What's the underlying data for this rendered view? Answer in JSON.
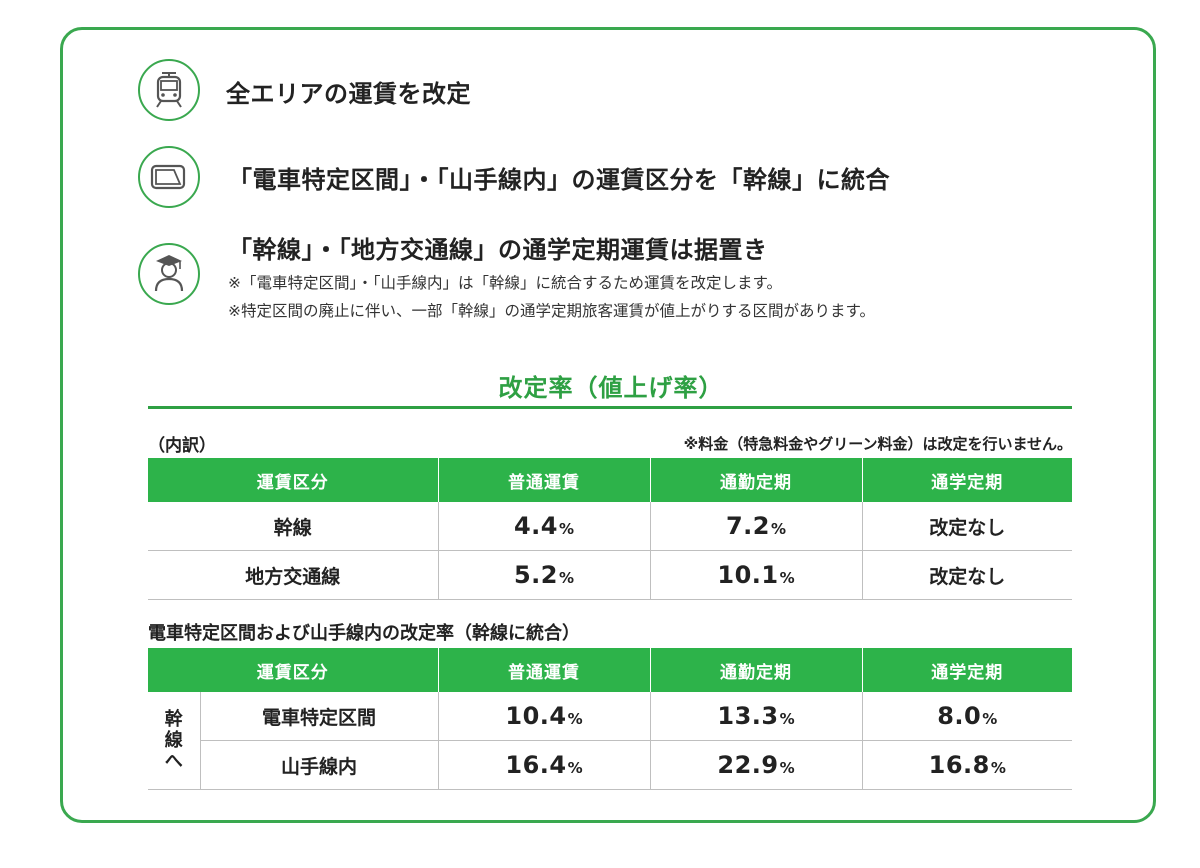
{
  "colors": {
    "accent": "#2db34a",
    "border": "#3aa84f"
  },
  "points": [
    {
      "icon": "train-icon",
      "text": "全エリアの運賃を改定"
    },
    {
      "icon": "ic-card-icon",
      "text": "「電車特定区間」・「山手線内」の運賃区分を「幹線」に統合"
    },
    {
      "icon": "student-icon",
      "text": "「幹線」・「地方交通線」の通学定期運賃は据置き"
    }
  ],
  "notes": [
    "※「電車特定区間」・「山手線内」は「幹線」に統合するため運賃を改定します。",
    "※特定区間の廃止に伴い、一部「幹線」の通学定期旅客運賃が値上がりする区間があります。"
  ],
  "rate_section": {
    "title": "改定率（値上げ率）",
    "breakdown_label": "（内訳）",
    "fee_note": "※料金（特急料金やグリーン料金）は改定を行いません。"
  },
  "table1": {
    "headers": [
      "運賃区分",
      "普通運賃",
      "通勤定期",
      "通学定期"
    ],
    "rows": [
      {
        "category": "幹線",
        "regular": "4.4",
        "regular_unit": "%",
        "commuter": "7.2",
        "commuter_unit": "%",
        "student": "改定なし"
      },
      {
        "category": "地方交通線",
        "regular": "5.2",
        "regular_unit": "%",
        "commuter": "10.1",
        "commuter_unit": "%",
        "student": "改定なし"
      }
    ]
  },
  "table2": {
    "title": "電車特定区間および山手線内の改定率（幹線に統合）",
    "headers": [
      "運賃区分",
      "普通運賃",
      "通勤定期",
      "通学定期"
    ],
    "group_label": "幹線へ",
    "rows": [
      {
        "category": "電車特定区間",
        "regular": "10.4",
        "commuter": "13.3",
        "student": "8.0",
        "unit": "%"
      },
      {
        "category": "山手線内",
        "regular": "16.4",
        "commuter": "22.9",
        "student": "16.8",
        "unit": "%"
      }
    ]
  }
}
